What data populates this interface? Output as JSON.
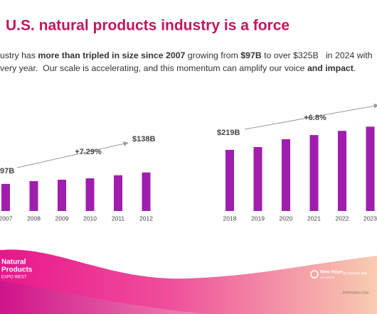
{
  "header": {
    "title": "U.S. natural products industry is a force"
  },
  "body": {
    "lines": [
      [
        {
          "text": "ustry has ",
          "bold": false
        },
        {
          "text": "more than tripled in size since 2007",
          "bold": true
        },
        {
          "text": " growing from ",
          "bold": false
        },
        {
          "text": "$97B",
          "bold": true
        },
        {
          "text": " to over $325B   in 2024 with",
          "bold": false
        }
      ],
      [
        {
          "text": "very year.  Our scale is accelerating, and this momentum can amplify our voice ",
          "bold": false
        },
        {
          "text": "and impact",
          "bold": true
        },
        {
          "text": ".",
          "bold": false
        }
      ]
    ]
  },
  "chart_data": [
    {
      "type": "bar",
      "categories": [
        "2007",
        "2008",
        "2009",
        "2010",
        "2011",
        "2012"
      ],
      "values": [
        97,
        107,
        112,
        117,
        128,
        138
      ],
      "value_labels": [
        "97B",
        null,
        null,
        null,
        null,
        "$138B"
      ],
      "growth_label": "+7.29%",
      "color": "#a01db0"
    },
    {
      "type": "bar",
      "categories": [
        "2018",
        "2019",
        "2020",
        "2021",
        "2022",
        "2023"
      ],
      "values": [
        219,
        229,
        257,
        272,
        287,
        302
      ],
      "value_labels": [
        "$219B",
        null,
        null,
        null,
        null,
        null
      ],
      "growth_label": "+6.8%",
      "color": "#a01db0"
    }
  ],
  "footer": {
    "expo": [
      "Natural",
      "Products",
      "EXPO WEST"
    ],
    "network": "New Hope",
    "network_sub": "NETWORK",
    "informa": "By Informa Mar",
    "classification": "Information Clas"
  }
}
